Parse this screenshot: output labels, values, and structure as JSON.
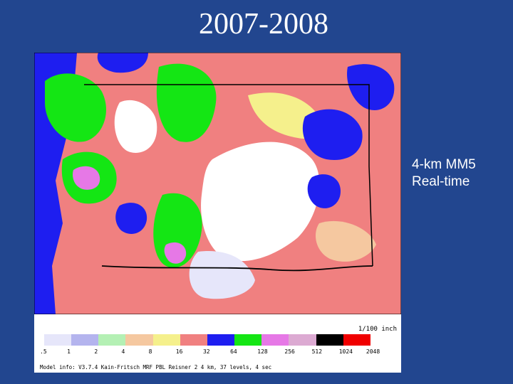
{
  "slide": {
    "title": "2007-2008",
    "side_label_line1": "4-km MM5",
    "side_label_line2": "Real-time"
  },
  "map": {
    "units_label": "1/100 inch",
    "legend": [
      {
        "value": ".5",
        "color": "#e6e6fa"
      },
      {
        "value": "1",
        "color": "#b4b4ee"
      },
      {
        "value": "2",
        "color": "#b4f0b4"
      },
      {
        "value": "4",
        "color": "#f5c8a0"
      },
      {
        "value": "8",
        "color": "#f5f08c"
      },
      {
        "value": "16",
        "color": "#f08080"
      },
      {
        "value": "32",
        "color": "#1e1ef0"
      },
      {
        "value": "64",
        "color": "#14e614"
      },
      {
        "value": "128",
        "color": "#e678e6"
      },
      {
        "value": "256",
        "color": "#dcaad2"
      },
      {
        "value": "512",
        "color": "#000000"
      },
      {
        "value": "1024",
        "color": "#f00000"
      },
      {
        "value": "2048",
        "color": "#ffffff"
      }
    ],
    "model_info": "Model info: V3.7.4  Kain-Fritsch  MRF PBL   Reisner 2    4 km, 37 levels,   4 sec"
  }
}
